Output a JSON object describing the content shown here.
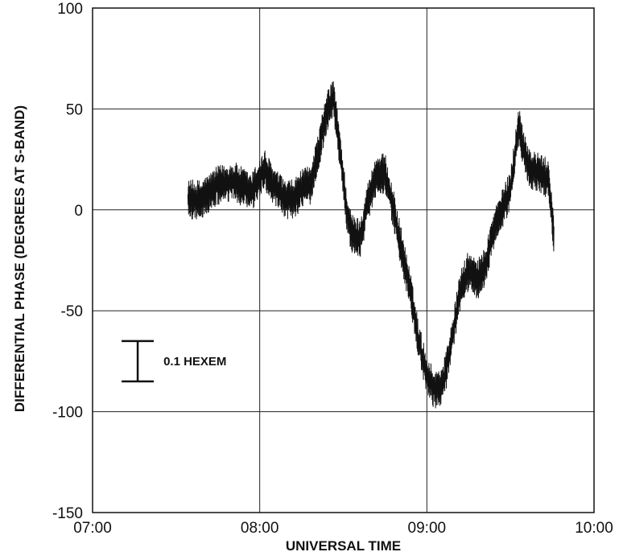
{
  "chart_data": {
    "type": "line",
    "title": "",
    "xlabel": "UNIVERSAL  TIME",
    "ylabel": "DIFFERENTIAL PHASE (DEGREES AT S-BAND)",
    "x_unit": "hours UT",
    "xlim": [
      7.0,
      10.0
    ],
    "ylim": [
      -150,
      100
    ],
    "xticks": [
      {
        "value": 7.0,
        "label": "07:00"
      },
      {
        "value": 8.0,
        "label": "08:00"
      },
      {
        "value": 9.0,
        "label": "09:00"
      },
      {
        "value": 10.0,
        "label": "10:00"
      }
    ],
    "yticks": [
      {
        "value": 100,
        "label": "100"
      },
      {
        "value": 50,
        "label": "50"
      },
      {
        "value": 0,
        "label": "0"
      },
      {
        "value": -50,
        "label": "-50"
      },
      {
        "value": -100,
        "label": "-100"
      },
      {
        "value": -150,
        "label": "-150"
      }
    ],
    "grid": true,
    "series": [
      {
        "noise_amplitude_deg": 10,
        "x": [
          7.57,
          7.65,
          7.75,
          7.85,
          7.95,
          8.0,
          8.03,
          8.08,
          8.15,
          8.2,
          8.25,
          8.3,
          8.35,
          8.4,
          8.44,
          8.48,
          8.52,
          8.55,
          8.6,
          8.65,
          8.7,
          8.75,
          8.8,
          8.85,
          8.9,
          8.95,
          9.0,
          9.05,
          9.1,
          9.15,
          9.2,
          9.25,
          9.3,
          9.35,
          9.4,
          9.45,
          9.5,
          9.55,
          9.58,
          9.62,
          9.68,
          9.73,
          9.76
        ],
        "y": [
          5,
          5,
          12,
          14,
          8,
          16,
          20,
          12,
          5,
          5,
          10,
          12,
          28,
          48,
          56,
          30,
          0,
          -12,
          -14,
          5,
          18,
          18,
          0,
          -20,
          -40,
          -65,
          -82,
          -90,
          -85,
          -65,
          -40,
          -30,
          -35,
          -28,
          -10,
          0,
          10,
          42,
          30,
          20,
          18,
          15,
          -12
        ]
      }
    ],
    "scale_bar": {
      "label": "0.1 HEXEM",
      "y_top": -65,
      "y_bottom": -85,
      "x": 7.27
    }
  }
}
